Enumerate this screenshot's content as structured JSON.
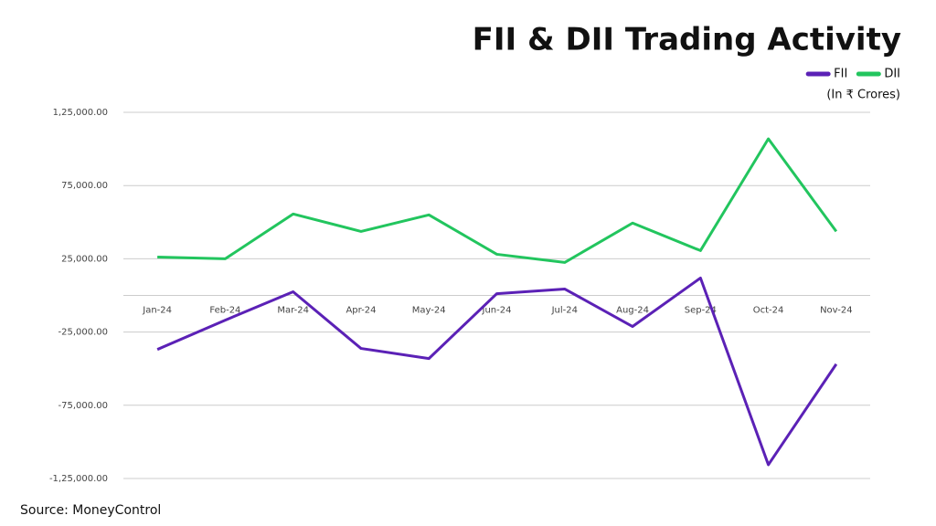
{
  "chart_data": {
    "type": "line",
    "title": "FII & DII Trading Activity",
    "subtitle": "(In ₹ Crores)",
    "source": "Source: MoneyControl",
    "categories": [
      "Jan-24",
      "Feb-24",
      "Mar-24",
      "Apr-24",
      "May-24",
      "Jun-24",
      "Jul-24",
      "Aug-24",
      "Sep-24",
      "Oct-24",
      "Nov-24"
    ],
    "series": [
      {
        "name": "FII",
        "color": "#5b21b6",
        "values": [
          -36900,
          -16900,
          2500,
          -36200,
          -43100,
          1200,
          4400,
          -21200,
          11900,
          -115600,
          -46900
        ]
      },
      {
        "name": "DII",
        "color": "#22c55e",
        "values": [
          26200,
          25000,
          55600,
          43700,
          55000,
          28100,
          22500,
          49400,
          30600,
          106900,
          43700
        ]
      }
    ],
    "ylim": [
      -125000,
      125000
    ],
    "yticks": [
      {
        "value": -125000,
        "label": "-1,25,000.00"
      },
      {
        "value": -75000,
        "label": "-75,000.00"
      },
      {
        "value": -25000,
        "label": "-25,000.00"
      },
      {
        "value": 25000,
        "label": "25,000.00"
      },
      {
        "value": 75000,
        "label": "75,000.00"
      },
      {
        "value": 125000,
        "label": "1,25,000.00"
      }
    ],
    "grid": true,
    "legend": "top-right"
  }
}
